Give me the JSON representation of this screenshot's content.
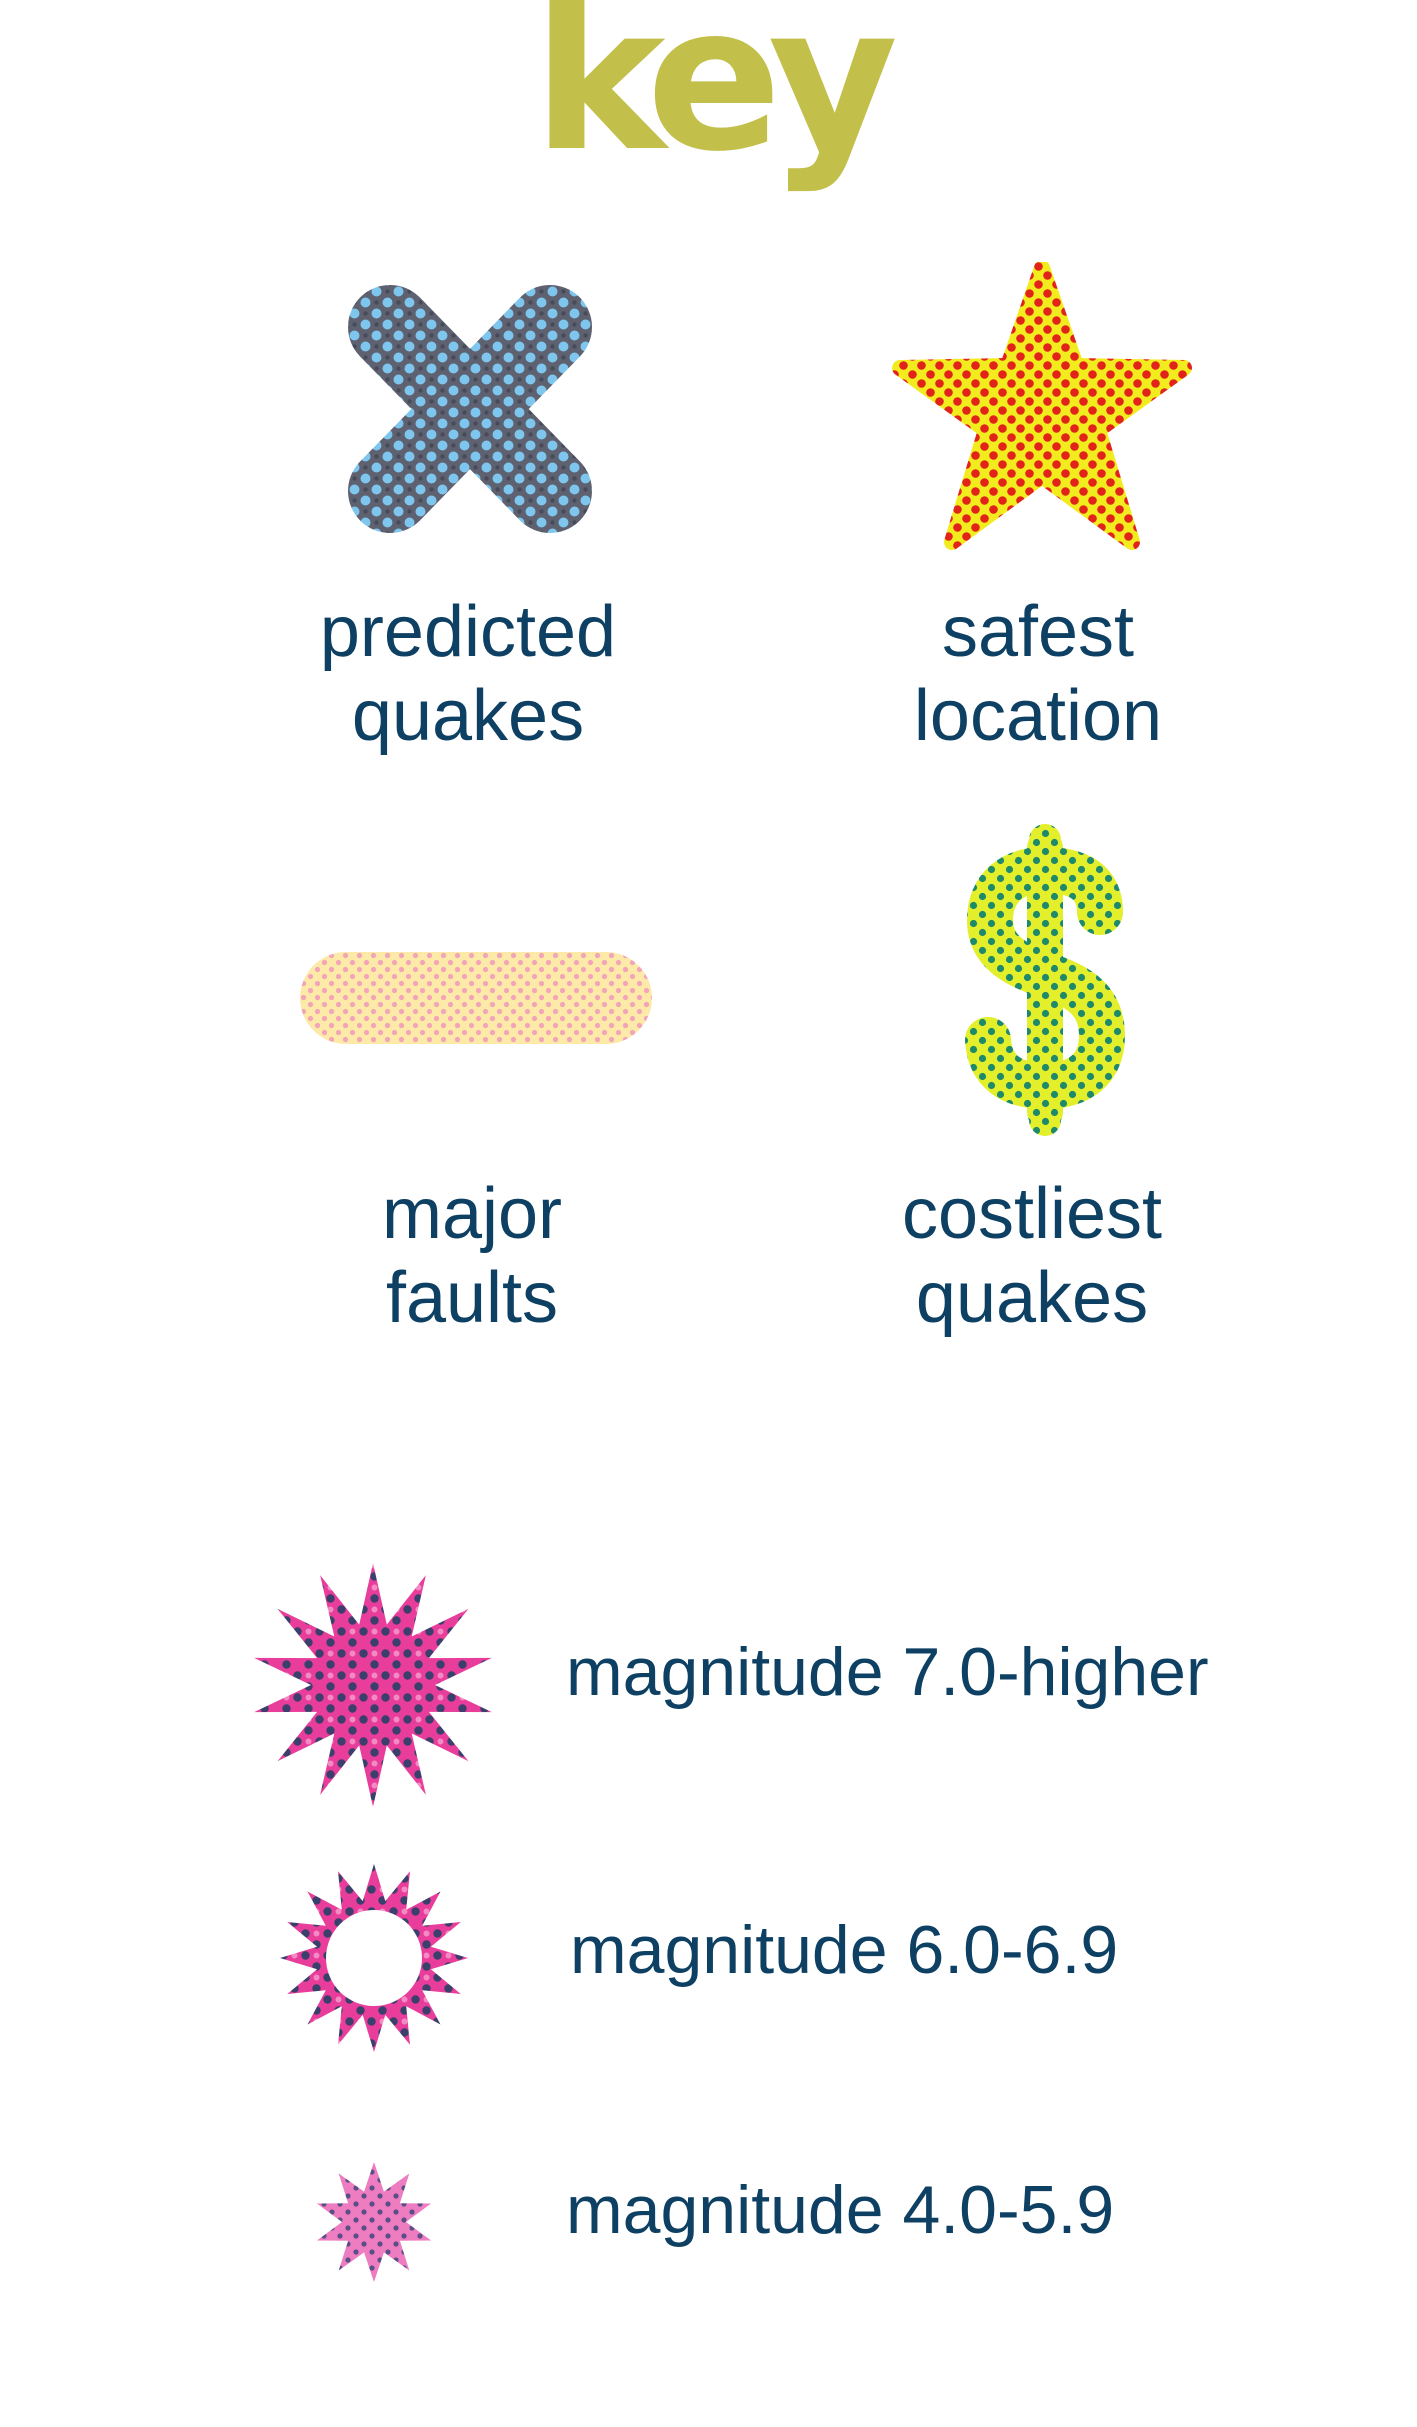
{
  "title": "key",
  "colors": {
    "title": "#c2bf4a",
    "label": "#0e4063",
    "x_base": "#5e6170",
    "x_dots": "#7ec6ee",
    "star_base": "#f2ec1e",
    "star_dots": "#e2231a",
    "fault_base": "#fde9a8",
    "fault_dots": "#f3a5b8",
    "dollar_base": "#e3ef2a",
    "dollar_dots": "#1f8a6a",
    "burst_base": "#e83d9b",
    "burst_dots": "#3b3f6b"
  },
  "symbols": [
    {
      "id": "predicted-quakes",
      "icon": "x-mark-icon",
      "lines": [
        "predicted",
        "quakes"
      ]
    },
    {
      "id": "safest-location",
      "icon": "star-icon",
      "lines": [
        "safest",
        "location"
      ]
    },
    {
      "id": "major-faults",
      "icon": "fault-bar-icon",
      "lines": [
        "major",
        "faults"
      ]
    },
    {
      "id": "costliest-quakes",
      "icon": "dollar-sign-icon",
      "lines": [
        "costliest",
        "quakes"
      ]
    }
  ],
  "magnitudes": [
    {
      "icon": "solid-burst-icon",
      "label": "magnitude 7.0-higher"
    },
    {
      "icon": "ring-burst-icon",
      "label": "magnitude 6.0-6.9"
    },
    {
      "icon": "small-burst-icon",
      "label": "magnitude 4.0-5.9"
    }
  ]
}
